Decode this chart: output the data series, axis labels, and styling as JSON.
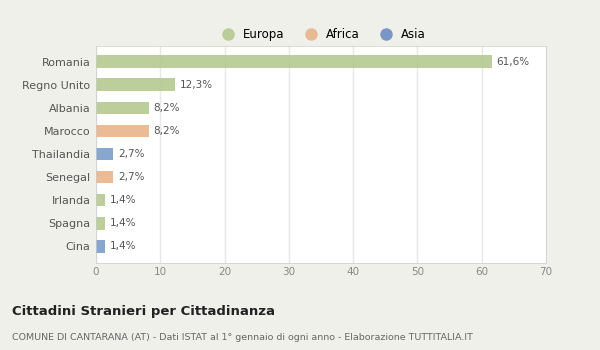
{
  "categories": [
    "Romania",
    "Regno Unito",
    "Albania",
    "Marocco",
    "Thailandia",
    "Senegal",
    "Irlanda",
    "Spagna",
    "Cina"
  ],
  "values": [
    61.6,
    12.3,
    8.2,
    8.2,
    2.7,
    2.7,
    1.4,
    1.4,
    1.4
  ],
  "labels": [
    "61,6%",
    "12,3%",
    "8,2%",
    "8,2%",
    "2,7%",
    "2,7%",
    "1,4%",
    "1,4%",
    "1,4%"
  ],
  "colors": [
    "#b5c98e",
    "#b5c98e",
    "#b5c98e",
    "#e8b48a",
    "#7b9ec9",
    "#e8b48a",
    "#b5c98e",
    "#b5c98e",
    "#7b9ec9"
  ],
  "legend_labels": [
    "Europa",
    "Africa",
    "Asia"
  ],
  "legend_colors": [
    "#b5c98e",
    "#e8b48a",
    "#6b8ec0"
  ],
  "xlim": [
    0,
    70
  ],
  "xticks": [
    0,
    10,
    20,
    30,
    40,
    50,
    60,
    70
  ],
  "title": "Cittadini Stranieri per Cittadinanza",
  "subtitle": "COMUNE DI CANTARANA (AT) - Dati ISTAT al 1° gennaio di ogni anno - Elaborazione TUTTITALIA.IT",
  "outer_bg": "#f0f0eb",
  "inner_bg": "#ffffff",
  "grid_color": "#e8e8e8",
  "bar_height": 0.55
}
